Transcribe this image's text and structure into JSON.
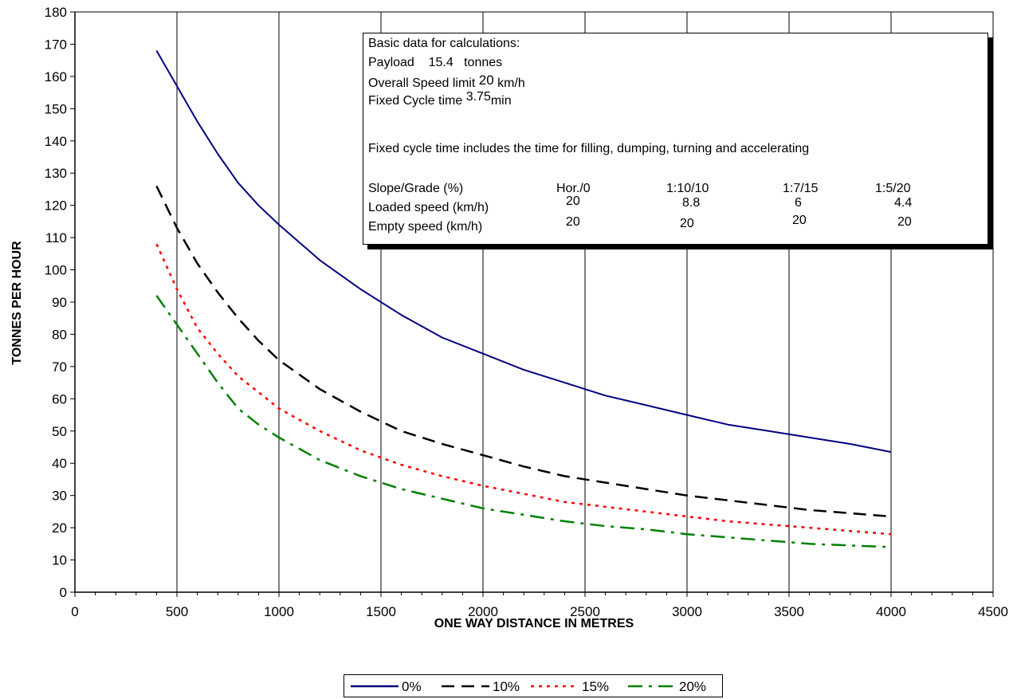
{
  "chart_data": {
    "type": "line",
    "title": "",
    "xlabel": "ONE WAY DISTANCE IN METRES",
    "ylabel": "TONNES PER HOUR",
    "xlim": [
      0,
      4500
    ],
    "ylim": [
      0,
      180
    ],
    "x_ticks": [
      "0",
      "500",
      "1000",
      "1500",
      "2000",
      "2500",
      "3000",
      "3500",
      "4000",
      "4500"
    ],
    "y_ticks": [
      "0",
      "10",
      "20",
      "30",
      "40",
      "50",
      "60",
      "70",
      "80",
      "90",
      "100",
      "110",
      "120",
      "130",
      "140",
      "150",
      "160",
      "170",
      "180"
    ],
    "grid": "vertical",
    "legend_position": "bottom",
    "x": [
      400,
      500,
      600,
      700,
      800,
      900,
      1000,
      1200,
      1400,
      1600,
      1800,
      2000,
      2200,
      2400,
      2600,
      2800,
      3000,
      3200,
      3400,
      3600,
      3800,
      4000
    ],
    "series": [
      {
        "name": "0%",
        "color": "#000080",
        "style": "solid",
        "values": [
          168,
          157,
          146,
          136,
          127,
          120,
          114,
          103,
          94,
          86,
          79,
          74,
          69,
          65,
          61,
          58,
          55,
          52,
          50,
          48,
          46,
          43.5
        ]
      },
      {
        "name": "10%",
        "color": "#000000",
        "style": "dash",
        "values": [
          126,
          113,
          102,
          93,
          85,
          78,
          72,
          63,
          56,
          50,
          46,
          42.5,
          39,
          36,
          34,
          32,
          30,
          28.5,
          27,
          25.5,
          24.5,
          23.5
        ]
      },
      {
        "name": "15%",
        "color": "#ff0000",
        "style": "dot",
        "values": [
          108,
          94,
          82,
          74,
          67,
          62,
          57,
          50,
          44,
          39.5,
          36,
          33,
          30.5,
          28,
          26.5,
          25,
          23.5,
          22,
          21,
          20,
          19,
          18
        ]
      },
      {
        "name": "20%",
        "color": "#008000",
        "style": "dashdot",
        "values": [
          92,
          83,
          74,
          65,
          57,
          52,
          48,
          41,
          36,
          32,
          29,
          26,
          24,
          22,
          20.5,
          19.5,
          18,
          17,
          16,
          15,
          14.5,
          14
        ]
      }
    ]
  },
  "info": {
    "heading": "Basic data for calculations:",
    "payload_label": "Payload",
    "payload_value": "15.4",
    "payload_unit": "tonnes",
    "speed_label": "Overall Speed limit",
    "speed_value": "20",
    "speed_unit": "km/h",
    "cycle_label": "Fixed Cycle time",
    "cycle_value": "3.75",
    "cycle_unit": "min",
    "note": "Fixed cycle time includes the time for filling, dumping, turning and accelerating",
    "table": {
      "row_labels": [
        "Slope/Grade (%)",
        "Loaded speed (km/h)",
        "Empty speed (km/h)"
      ],
      "grades": [
        "Hor./0",
        "1:10/10",
        "1:7/15",
        "1:5/20"
      ],
      "loaded": [
        "20",
        "8.8",
        "6",
        "4.4"
      ],
      "empty": [
        "20",
        "20",
        "20",
        "20"
      ]
    }
  }
}
